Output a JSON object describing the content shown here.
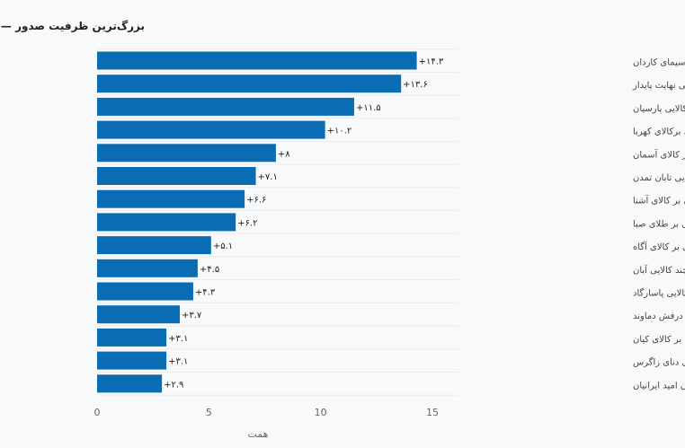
{
  "chart_data": {
    "type": "bar",
    "orientation": "horizontal",
    "title": "بزرگ‌ترین ظرفیت صدور — طلا",
    "xlabel": "همت",
    "ylabel": "",
    "xlim": [
      0,
      16.5
    ],
    "xticks": [
      0,
      5,
      10,
      15
    ],
    "xtick_labels": [
      "0",
      "5",
      "10",
      "15"
    ],
    "grid": true,
    "bar_color": "#0a6db3",
    "categories": [
      "سیمای کاردان",
      "چند کالایی نهایت پایدار",
      "پشتوانه چند کالایی پارسیان",
      "مبتنی برکالای کهربا",
      "در اوراق بهادار مبتنی بر کالای آسمان",
      "کالایی تابان تمدن",
      "در اوراق بهادار مبتنی بر کالای آشنا",
      "در اوراق بهادار مبتنی بر طلای صبا",
      "مبتنی بر کالای آگاه",
      "چند کالایی آبان",
      "چند کالایی پاسارگاد",
      "کالایی درفش دماوند",
      "مبتنی بر کالای کیان",
      "چند کالایی دنای زاگرس",
      "پشتوانه سکه طلای زرافشان امید ایرانیان"
    ],
    "values": [
      14.3,
      13.6,
      11.5,
      10.2,
      8,
      7.1,
      6.6,
      6.2,
      5.1,
      4.5,
      4.3,
      3.7,
      3.1,
      3.1,
      2.9
    ],
    "value_labels": [
      "+۱۴.۳",
      "+۱۳.۶",
      "+۱۱.۵",
      "+۱۰.۲",
      "+۸",
      "+۷.۱",
      "+۶.۶",
      "+۶.۲",
      "+۵.۱",
      "+۴.۵",
      "+۴.۳",
      "+۳.۷",
      "+۳.۱",
      "+۳.۱",
      "+۲.۹"
    ]
  }
}
